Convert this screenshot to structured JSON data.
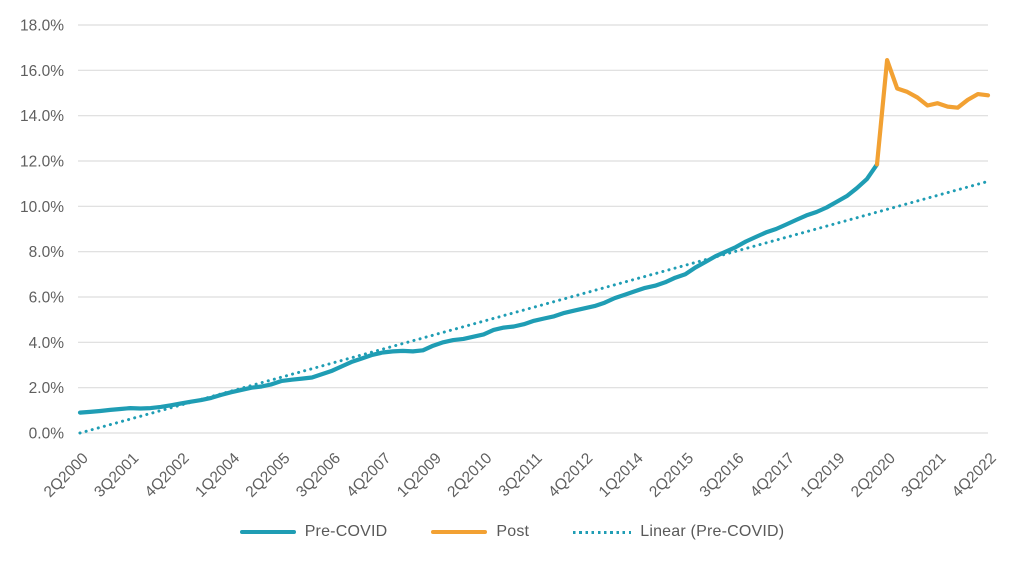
{
  "page": {
    "background": "#FFFFFF",
    "text_color": "#5F5F5F"
  },
  "chart_data": {
    "type": "line",
    "title": "",
    "xlabel": "",
    "ylabel": "",
    "x_axis": {
      "unit": "quarter",
      "points_total": 91,
      "tick_step": 5,
      "tick_labels": [
        "2Q2000",
        "3Q2001",
        "4Q2002",
        "1Q2004",
        "2Q2005",
        "3Q2006",
        "4Q2007",
        "1Q2009",
        "2Q2010",
        "3Q2011",
        "4Q2012",
        "1Q2014",
        "2Q2015",
        "3Q2016",
        "4Q2017",
        "1Q2019",
        "2Q2020",
        "3Q2021",
        "4Q2022"
      ]
    },
    "y_axis": {
      "min": 0,
      "max": 18,
      "tick_labels": [
        "0.0%",
        "2.0%",
        "4.0%",
        "6.0%",
        "8.0%",
        "10.0%",
        "12.0%",
        "14.0%",
        "16.0%",
        "18.0%"
      ],
      "grid": true,
      "grid_color": "#DDDDDD"
    },
    "series": [
      {
        "name": "Pre-COVID",
        "style": "solid",
        "color": "#1F9DB4",
        "start_index": 0,
        "values": [
          0.9,
          0.93,
          0.97,
          1.02,
          1.06,
          1.1,
          1.08,
          1.1,
          1.15,
          1.22,
          1.3,
          1.38,
          1.45,
          1.55,
          1.68,
          1.8,
          1.9,
          2.0,
          2.05,
          2.15,
          2.3,
          2.35,
          2.4,
          2.45,
          2.6,
          2.75,
          2.95,
          3.15,
          3.3,
          3.45,
          3.55,
          3.6,
          3.62,
          3.6,
          3.65,
          3.85,
          4.0,
          4.1,
          4.15,
          4.25,
          4.35,
          4.55,
          4.65,
          4.7,
          4.8,
          4.95,
          5.05,
          5.15,
          5.3,
          5.4,
          5.5,
          5.6,
          5.75,
          5.95,
          6.1,
          6.25,
          6.4,
          6.5,
          6.65,
          6.85,
          7.0,
          7.3,
          7.55,
          7.8,
          8.0,
          8.2,
          8.45,
          8.65,
          8.85,
          9.0,
          9.2,
          9.4,
          9.6,
          9.75,
          9.95,
          10.2,
          10.45,
          10.8,
          11.2,
          11.85
        ]
      },
      {
        "name": "Post",
        "style": "solid",
        "color": "#F2A133",
        "start_index": 79,
        "values": [
          11.85,
          16.45,
          15.2,
          15.05,
          14.8,
          14.45,
          14.55,
          14.4,
          14.35,
          14.7,
          14.95,
          14.9
        ]
      },
      {
        "name": "Linear (Pre-COVID)",
        "style": "dotted",
        "color": "#1F9DB4",
        "start_index": 0,
        "end_index": 90,
        "start_value": 0.0,
        "end_value": 11.1
      }
    ],
    "legend": {
      "position": "bottom",
      "items": [
        {
          "label": "Pre-COVID",
          "swatch": "solid-line",
          "color": "#1F9DB4"
        },
        {
          "label": "Post",
          "swatch": "solid-line",
          "color": "#F2A133"
        },
        {
          "label": "Linear (Pre-COVID)",
          "swatch": "dotted-line",
          "color": "#1F9DB4"
        }
      ]
    }
  }
}
